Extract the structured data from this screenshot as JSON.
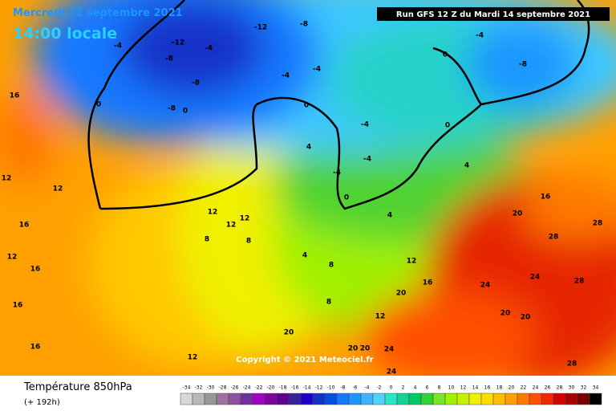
{
  "header": {
    "date": "Mercredi 22 septembre 2021",
    "time": "14:00 locale",
    "run": "Run GFS 12 Z du Mardi 14 septembre 2021"
  },
  "copyright": "Copyright © 2021 Meteociel.fr",
  "footer": {
    "title": "Température 850hPa",
    "lead": "(+ 192h)"
  },
  "scale": {
    "values": [
      -34,
      -32,
      -30,
      -28,
      -26,
      -24,
      -22,
      -20,
      -18,
      -16,
      -14,
      -12,
      -10,
      -8,
      -6,
      -4,
      -2,
      0,
      2,
      4,
      6,
      8,
      10,
      12,
      14,
      16,
      18,
      20,
      22,
      24,
      26,
      28,
      30,
      32,
      34
    ],
    "colors": [
      "#d8d8d8",
      "#b8b8b8",
      "#989898",
      "#a070a0",
      "#9050a0",
      "#7030a0",
      "#a000c8",
      "#8000a0",
      "#600090",
      "#3c1e9c",
      "#1e00c8",
      "#1432c8",
      "#0050e0",
      "#1478ff",
      "#1e96ff",
      "#3cb4ff",
      "#50d2ff",
      "#28e6c8",
      "#14d296",
      "#00c864",
      "#32d232",
      "#78e628",
      "#a0f000",
      "#c8f000",
      "#f0f000",
      "#ffdc00",
      "#ffbe00",
      "#ffa000",
      "#ff7800",
      "#ff5000",
      "#f02800",
      "#d20000",
      "#aa0000",
      "#780000",
      "#000000"
    ]
  },
  "map_labels": [
    "-12",
    "-8",
    "-12",
    "-8",
    "-4",
    "-4",
    "-8",
    "-8",
    "0",
    "0",
    "-4",
    "0",
    "-4",
    "0",
    "-8",
    "-4",
    "0",
    "-4",
    "4",
    "-4",
    "4",
    "0",
    "-4",
    "16",
    "12",
    "12",
    "16",
    "16",
    "12",
    "12",
    "12",
    "8",
    "12",
    "8",
    "4",
    "4",
    "8",
    "12",
    "16",
    "20",
    "16",
    "28",
    "28",
    "24",
    "24",
    "28",
    "20",
    "20",
    "20",
    "24",
    "28",
    "16",
    "16",
    "12",
    "8",
    "12",
    "20",
    "20",
    "20",
    "24"
  ]
}
